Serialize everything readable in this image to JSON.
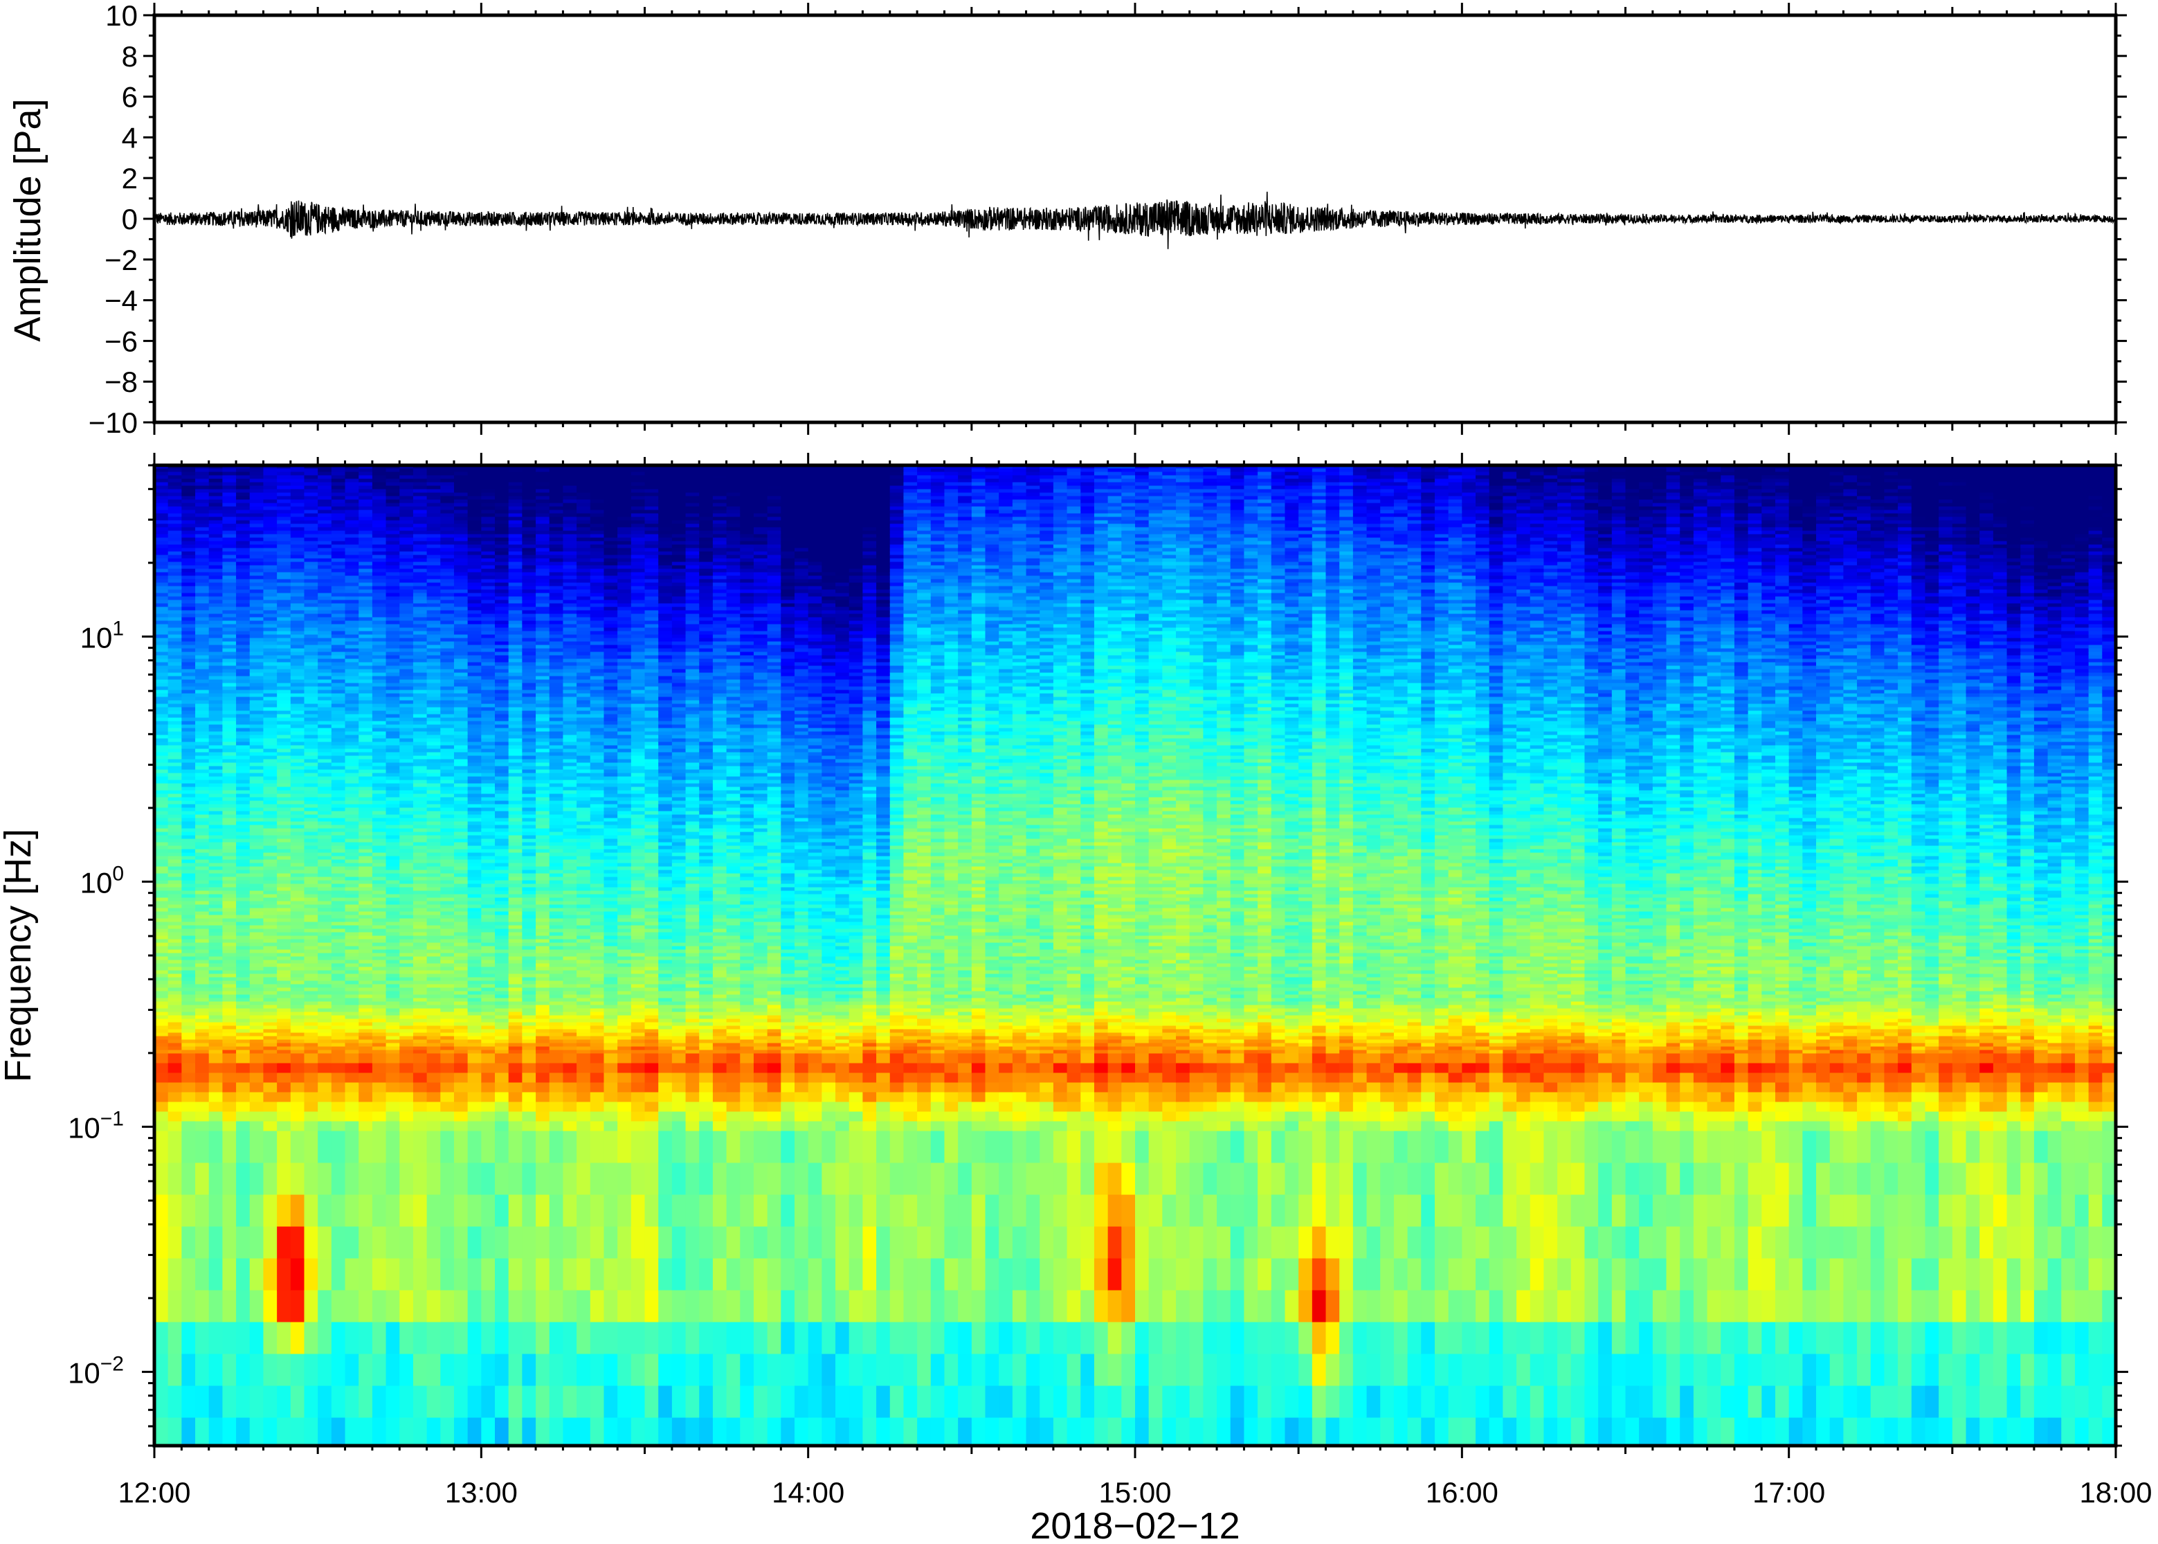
{
  "chart_data": [
    {
      "type": "line",
      "panel": "waveform",
      "ylabel": "Amplitude [Pa]",
      "ylim": [
        -10,
        10
      ],
      "yticks": [
        10,
        8,
        6,
        4,
        2,
        0,
        -2,
        -4,
        -6,
        -8,
        -10
      ],
      "ytick_labels": [
        "10",
        "8",
        "6",
        "4",
        "2",
        "0",
        "−2",
        "−4",
        "−6",
        "−8",
        "−10"
      ],
      "x_range": [
        "12:00",
        "18:00"
      ],
      "envelope": {
        "x": [
          12.0,
          12.2,
          12.4,
          12.42,
          12.6,
          12.8,
          13.0,
          13.3,
          13.6,
          13.9,
          14.2,
          14.4,
          14.55,
          14.7,
          14.85,
          15.0,
          15.1,
          15.25,
          15.4,
          15.5,
          15.7,
          16.0,
          16.3,
          16.6,
          17.0,
          17.5,
          18.0
        ],
        "y": [
          0.3,
          0.35,
          0.5,
          1.0,
          0.5,
          0.4,
          0.35,
          0.35,
          0.3,
          0.3,
          0.3,
          0.35,
          0.6,
          0.55,
          0.6,
          0.8,
          1.0,
          0.7,
          0.9,
          0.7,
          0.45,
          0.3,
          0.25,
          0.2,
          0.2,
          0.18,
          0.18
        ]
      }
    },
    {
      "type": "heatmap",
      "panel": "spectrogram",
      "ylabel": "Frequency [Hz]",
      "yscale": "log",
      "ylim": [
        0.005,
        50
      ],
      "yticks": [
        0.01,
        0.1,
        1,
        10
      ],
      "ytick_labels": [
        {
          "base": "10",
          "exp": "−2"
        },
        {
          "base": "10",
          "exp": "−1"
        },
        {
          "base": "10",
          "exp": "0"
        },
        {
          "base": "10",
          "exp": "1"
        }
      ],
      "colormap": "jet",
      "band_peak_hz": 0.18,
      "high_freq_cutoff_hz": {
        "x": [
          12.0,
          12.4,
          12.6,
          12.9,
          13.2,
          13.4,
          13.7,
          13.9,
          14.1,
          14.25,
          14.3,
          14.6,
          14.9,
          15.1,
          15.4,
          15.7,
          16.0,
          16.1,
          16.4,
          16.7,
          17.0,
          17.4,
          17.7,
          18.0
        ],
        "y": [
          12,
          16,
          15,
          10,
          8,
          7,
          8,
          6,
          5,
          5,
          22,
          26,
          27,
          30,
          28,
          22,
          16,
          12,
          10,
          11,
          9,
          8,
          5,
          6
        ]
      },
      "low_freq_hotspots": [
        {
          "time": 12.42,
          "freq_hz": 0.03,
          "label": "red"
        },
        {
          "time": 14.95,
          "freq_hz": 0.035,
          "label": "orange"
        },
        {
          "time": 15.57,
          "freq_hz": 0.02,
          "label": "orange"
        }
      ]
    }
  ],
  "xaxis": {
    "ticks": [
      "12:00",
      "13:00",
      "14:00",
      "15:00",
      "16:00",
      "17:00",
      "18:00"
    ],
    "label": "2018−02−12"
  },
  "colors": {
    "frame": "#000000",
    "trace": "#000000",
    "cmap_low": "#000080",
    "cmap_high": "#800000"
  }
}
